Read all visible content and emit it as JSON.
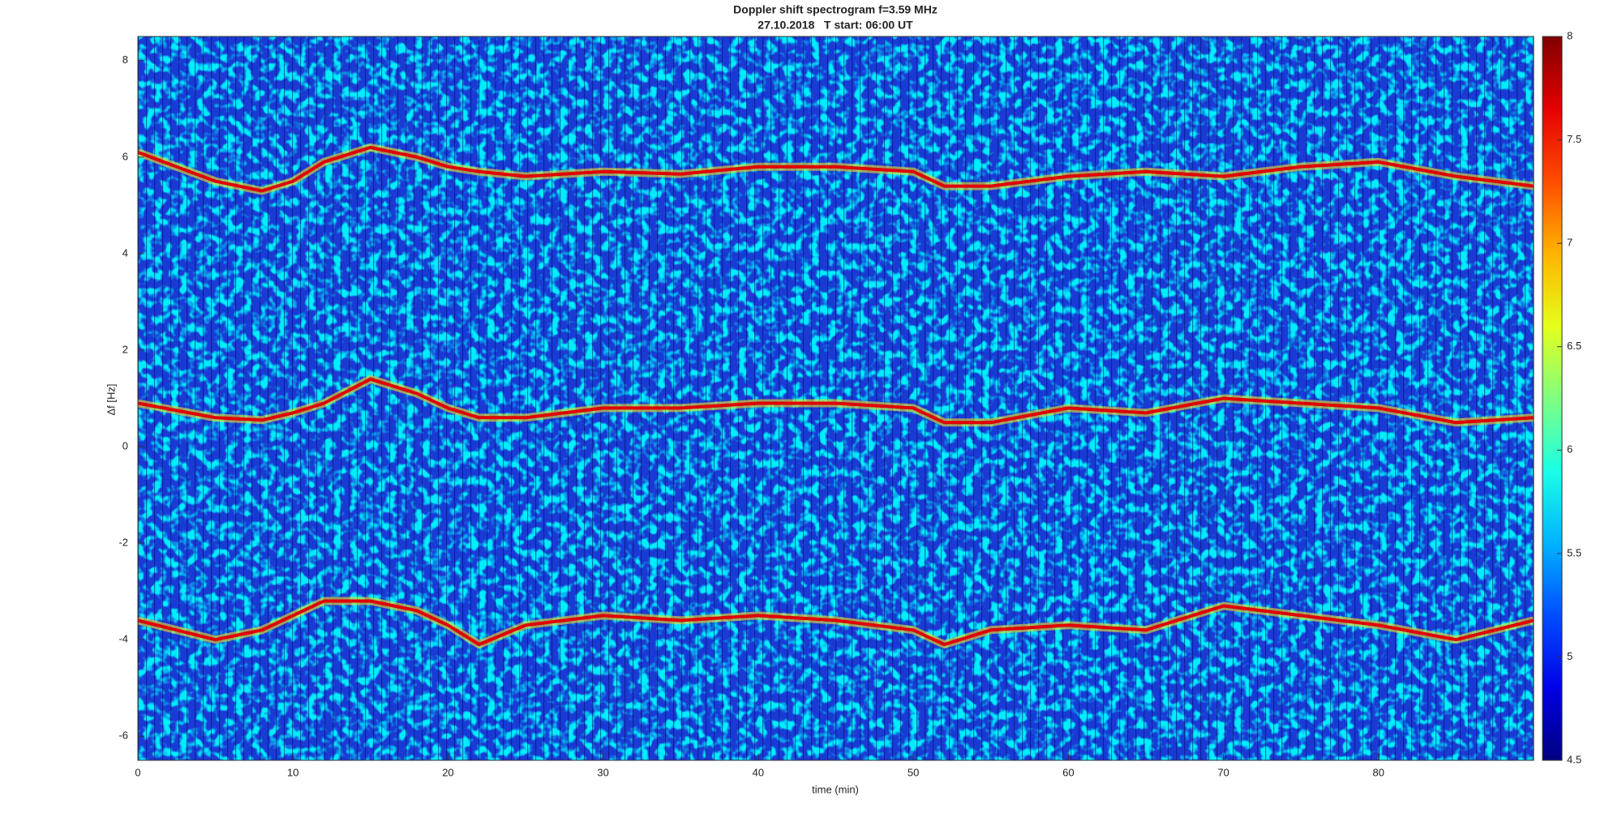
{
  "chart_data": {
    "type": "spectrogram",
    "title": "Doppler shift spectrogram f=3.59 MHz",
    "subtitle": "27.10.2018   T start: 06:00 UT",
    "x_label": "time (min)",
    "y_label": "Δf [Hz]",
    "xlim": [
      0,
      90
    ],
    "xticks": [
      0,
      10,
      20,
      30,
      40,
      50,
      60,
      70,
      80
    ],
    "ylim": [
      -6.5,
      8.5
    ],
    "yticks": [
      -6,
      -4,
      -2,
      0,
      2,
      4,
      6,
      8
    ],
    "colormap": "jet",
    "clim": [
      4.5,
      8
    ],
    "cticks": [
      4.5,
      5,
      5.5,
      6,
      6.5,
      7,
      7.5,
      8
    ],
    "x": [
      0,
      5,
      8,
      10,
      12,
      15,
      18,
      20,
      22,
      25,
      30,
      35,
      40,
      45,
      50,
      52,
      55,
      60,
      65,
      70,
      75,
      80,
      85,
      90
    ],
    "series": [
      {
        "color": "#e00000",
        "values": [
          6.1,
          5.5,
          5.3,
          5.5,
          5.9,
          6.2,
          6.0,
          5.8,
          5.7,
          5.6,
          5.7,
          5.65,
          5.8,
          5.8,
          5.7,
          5.4,
          5.4,
          5.6,
          5.7,
          5.6,
          5.8,
          5.9,
          5.6,
          5.4
        ]
      },
      {
        "color": "#e00000",
        "values": [
          0.9,
          0.6,
          0.55,
          0.7,
          0.9,
          1.4,
          1.1,
          0.8,
          0.6,
          0.6,
          0.8,
          0.8,
          0.9,
          0.9,
          0.8,
          0.5,
          0.5,
          0.8,
          0.7,
          1.0,
          0.9,
          0.8,
          0.5,
          0.6
        ]
      },
      {
        "color": "#e00000",
        "values": [
          -3.6,
          -4.0,
          -3.8,
          -3.5,
          -3.2,
          -3.2,
          -3.4,
          -3.7,
          -4.1,
          -3.7,
          -3.5,
          -3.6,
          -3.5,
          -3.6,
          -3.8,
          -4.1,
          -3.8,
          -3.7,
          -3.8,
          -3.3,
          -3.5,
          -3.7,
          -4.0,
          -3.6
        ]
      }
    ]
  }
}
